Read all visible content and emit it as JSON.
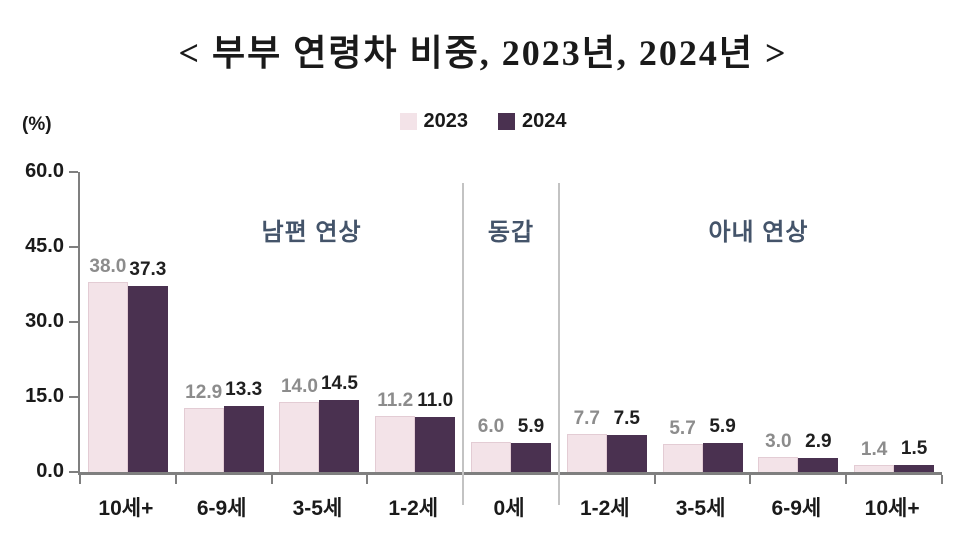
{
  "title": "< 부부 연령차 비중, 2023년, 2024년 >",
  "y_axis_unit": "(%)",
  "legend": [
    {
      "label": "2023",
      "color": "#f3e3e8"
    },
    {
      "label": "2024",
      "color": "#4a3150"
    }
  ],
  "chart_data": {
    "type": "bar",
    "title": "부부 연령차 비중, 2023년, 2024년",
    "ylabel": "(%)",
    "xlabel": "",
    "ylim": [
      0,
      60
    ],
    "yticks": [
      "60.0",
      "45.0",
      "30.0",
      "15.0",
      "0.0"
    ],
    "grid": false,
    "legend_position": "top",
    "categories": [
      "10세+",
      "6-9세",
      "3-5세",
      "1-2세",
      "0세",
      "1-2세",
      "3-5세",
      "6-9세",
      "10세+"
    ],
    "series": [
      {
        "name": "2023",
        "color": "#f3e3e8",
        "label_color": "#8c8c8c",
        "values": [
          38.0,
          12.9,
          14.0,
          11.2,
          6.0,
          7.7,
          5.7,
          3.0,
          1.4
        ]
      },
      {
        "name": "2024",
        "color": "#4a3150",
        "label_color": "#1f1f1f",
        "values": [
          37.3,
          13.3,
          14.5,
          11.0,
          5.9,
          7.5,
          5.9,
          2.9,
          1.5
        ]
      }
    ],
    "sections": [
      {
        "label": "남편 연상",
        "groups": 4
      },
      {
        "label": "동갑",
        "groups": 1
      },
      {
        "label": "아내 연상",
        "groups": 4
      }
    ]
  }
}
